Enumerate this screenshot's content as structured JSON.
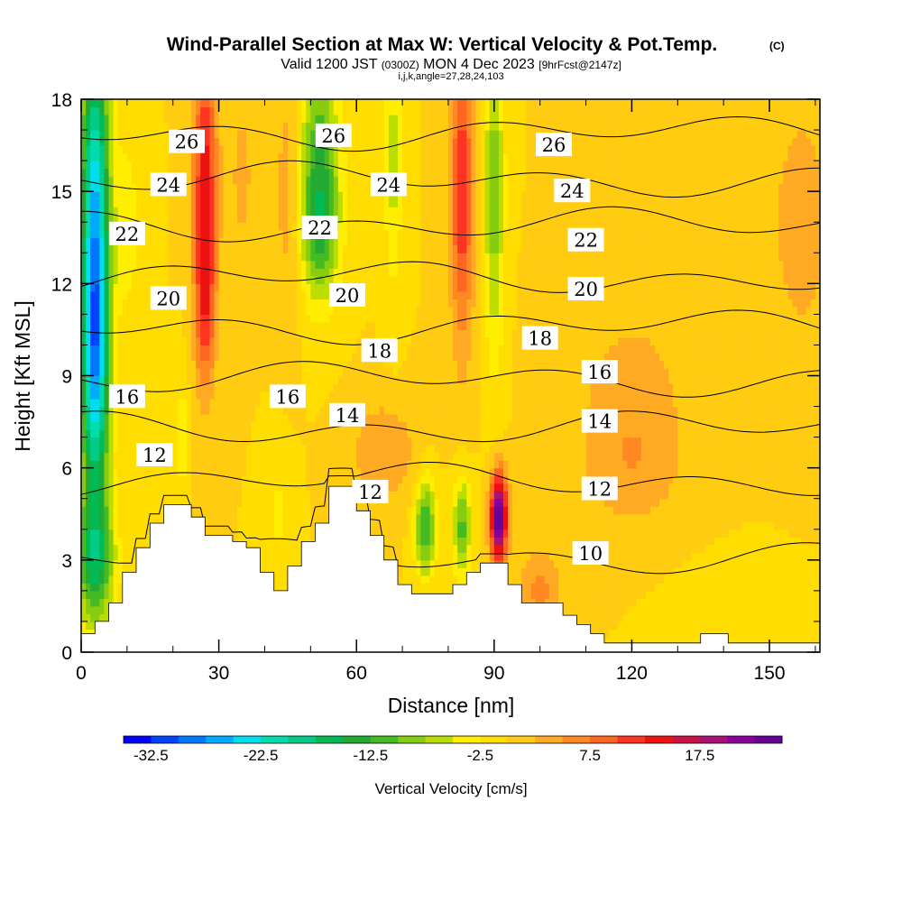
{
  "header": {
    "title": "Wind-Parallel Section at Max W: Vertical Velocity & Pot.Temp.",
    "copyright": "(C)",
    "valid_prefix": "Valid 1200 JST",
    "valid_utc": "(0300Z)",
    "valid_date": "MON 4 Dec 2023",
    "forecast": "[9hrFcst@2147z]",
    "indices": "i,j,k,angle=27,28,24,103"
  },
  "chart_data": {
    "type": "heatmap",
    "xlabel": "Distance [nm]",
    "ylabel": "Height [Kft MSL]",
    "xlim": [
      0,
      161
    ],
    "ylim": [
      0,
      18
    ],
    "x_ticks": [
      0,
      30,
      60,
      90,
      120,
      150
    ],
    "y_ticks": [
      0,
      3,
      6,
      9,
      12,
      15,
      18
    ],
    "colorbar": {
      "title": "Vertical Velocity [cm/s]",
      "tick_labels": [
        "-32.5",
        "-22.5",
        "-12.5",
        "-2.5",
        "7.5",
        "17.5"
      ],
      "min": -35,
      "max": 25,
      "colors": [
        "#0000ff",
        "#0044ff",
        "#0077ff",
        "#00aaff",
        "#00ddee",
        "#00ddaa",
        "#00cc88",
        "#00bb55",
        "#22aa33",
        "#44bb22",
        "#88cc11",
        "#bbdd00",
        "#ffee00",
        "#ffdd00",
        "#ffcc11",
        "#ffaa22",
        "#ff8822",
        "#ff6622",
        "#ff3322",
        "#ee1111",
        "#cc1144",
        "#aa1177",
        "#880099",
        "#660099"
      ]
    },
    "terrain": [
      [
        0,
        0.6
      ],
      [
        3,
        0.6
      ],
      [
        3,
        1.0
      ],
      [
        6,
        1.0
      ],
      [
        6,
        1.6
      ],
      [
        9,
        1.6
      ],
      [
        9,
        2.6
      ],
      [
        12,
        2.6
      ],
      [
        12,
        3.4
      ],
      [
        15,
        3.4
      ],
      [
        15,
        4.2
      ],
      [
        18,
        4.2
      ],
      [
        18,
        4.8
      ],
      [
        24,
        4.8
      ],
      [
        24,
        4.4
      ],
      [
        27,
        4.4
      ],
      [
        27,
        3.8
      ],
      [
        33,
        3.8
      ],
      [
        33,
        3.6
      ],
      [
        36,
        3.6
      ],
      [
        36,
        3.4
      ],
      [
        39,
        3.4
      ],
      [
        39,
        2.6
      ],
      [
        42,
        2.6
      ],
      [
        42,
        2.0
      ],
      [
        45,
        2.0
      ],
      [
        45,
        2.8
      ],
      [
        48,
        2.8
      ],
      [
        48,
        3.6
      ],
      [
        51,
        3.6
      ],
      [
        51,
        4.2
      ],
      [
        54,
        4.2
      ],
      [
        54,
        5.4
      ],
      [
        60,
        5.4
      ],
      [
        60,
        4.6
      ],
      [
        63,
        4.6
      ],
      [
        63,
        3.8
      ],
      [
        66,
        3.8
      ],
      [
        66,
        3.0
      ],
      [
        69,
        3.0
      ],
      [
        69,
        2.2
      ],
      [
        72,
        2.2
      ],
      [
        72,
        1.9
      ],
      [
        81,
        1.9
      ],
      [
        81,
        2.2
      ],
      [
        84,
        2.2
      ],
      [
        84,
        2.6
      ],
      [
        87,
        2.6
      ],
      [
        87,
        2.9
      ],
      [
        93,
        2.9
      ],
      [
        93,
        2.2
      ],
      [
        96,
        2.2
      ],
      [
        96,
        1.6
      ],
      [
        105,
        1.6
      ],
      [
        105,
        1.2
      ],
      [
        108,
        1.2
      ],
      [
        108,
        0.9
      ],
      [
        111,
        0.9
      ],
      [
        111,
        0.6
      ],
      [
        114,
        0.6
      ],
      [
        114,
        0.3
      ],
      [
        135,
        0.3
      ],
      [
        135,
        0.6
      ],
      [
        141,
        0.6
      ],
      [
        141,
        0.3
      ],
      [
        161,
        0.3
      ]
    ],
    "theta_contours": [
      {
        "label": "10",
        "base": 3.1,
        "lx": 111,
        "ly": 3.2
      },
      {
        "label": "12",
        "base": 5.6,
        "lx": 113,
        "ly": 5.3
      },
      {
        "label": "14",
        "base": 7.3,
        "lx": 113,
        "ly": 7.5
      },
      {
        "label": "16",
        "base": 8.9,
        "lx": 113,
        "ly": 9.1
      },
      {
        "label": "18",
        "base": 10.6,
        "lx": 100,
        "ly": 10.2
      },
      {
        "label": "20",
        "base": 12.2,
        "lx": 110,
        "ly": 11.8
      },
      {
        "label": "22",
        "base": 13.9,
        "lx": 110,
        "ly": 13.4
      },
      {
        "label": "24",
        "base": 15.4,
        "lx": 107,
        "ly": 15.0
      },
      {
        "label": "26",
        "base": 16.9,
        "lx": 103,
        "ly": 16.5
      }
    ],
    "contour_labels": [
      {
        "text": "26",
        "x": 23,
        "y": 16.6
      },
      {
        "text": "26",
        "x": 55,
        "y": 16.8
      },
      {
        "text": "26",
        "x": 103,
        "y": 16.5
      },
      {
        "text": "24",
        "x": 19,
        "y": 15.2
      },
      {
        "text": "24",
        "x": 67,
        "y": 15.2
      },
      {
        "text": "24",
        "x": 107,
        "y": 15.0
      },
      {
        "text": "22",
        "x": 10,
        "y": 13.6
      },
      {
        "text": "22",
        "x": 52,
        "y": 13.8
      },
      {
        "text": "22",
        "x": 110,
        "y": 13.4
      },
      {
        "text": "20",
        "x": 19,
        "y": 11.5
      },
      {
        "text": "20",
        "x": 58,
        "y": 11.6
      },
      {
        "text": "20",
        "x": 110,
        "y": 11.8
      },
      {
        "text": "18",
        "x": 65,
        "y": 9.8
      },
      {
        "text": "18",
        "x": 100,
        "y": 10.2
      },
      {
        "text": "16",
        "x": 10,
        "y": 8.3
      },
      {
        "text": "16",
        "x": 45,
        "y": 8.3
      },
      {
        "text": "16",
        "x": 113,
        "y": 9.1
      },
      {
        "text": "14",
        "x": 58,
        "y": 7.7
      },
      {
        "text": "14",
        "x": 113,
        "y": 7.5
      },
      {
        "text": "12",
        "x": 16,
        "y": 6.4
      },
      {
        "text": "12",
        "x": 63,
        "y": 5.2
      },
      {
        "text": "12",
        "x": 113,
        "y": 5.3
      },
      {
        "text": "10",
        "x": 111,
        "y": 3.2
      }
    ],
    "w_features": [
      {
        "x": 3,
        "y": 14,
        "sx": 2.2,
        "sy": 5,
        "w": -24
      },
      {
        "x": 3,
        "y": 9,
        "sx": 2.2,
        "sy": 3,
        "w": -14
      },
      {
        "x": 3,
        "y": 3,
        "sx": 3,
        "sy": 1.5,
        "w": -14
      },
      {
        "x": 10,
        "y": 14,
        "sx": 2,
        "sy": 2.2,
        "w": -4
      },
      {
        "x": 27,
        "y": 15,
        "sx": 1.8,
        "sy": 3.5,
        "w": 14
      },
      {
        "x": 27,
        "y": 11,
        "sx": 1.5,
        "sy": 1.8,
        "w": 6
      },
      {
        "x": 35,
        "y": 15.5,
        "sx": 2.5,
        "sy": 2.5,
        "w": 3
      },
      {
        "x": 52,
        "y": 16,
        "sx": 3,
        "sy": 2.5,
        "w": -12
      },
      {
        "x": 52,
        "y": 13.5,
        "sx": 3,
        "sy": 1.5,
        "w": -7
      },
      {
        "x": 45,
        "y": 15,
        "sx": 2,
        "sy": 3,
        "w": 4
      },
      {
        "x": 68,
        "y": 16,
        "sx": 1.4,
        "sy": 3,
        "w": -6
      },
      {
        "x": 83,
        "y": 15,
        "sx": 1.8,
        "sy": 3.5,
        "w": 12
      },
      {
        "x": 90,
        "y": 15,
        "sx": 1.6,
        "sy": 3.8,
        "w": -9
      },
      {
        "x": 75,
        "y": 4.1,
        "sx": 1.6,
        "sy": 1.1,
        "w": -13
      },
      {
        "x": 83,
        "y": 4.1,
        "sx": 1.4,
        "sy": 1.1,
        "w": -11
      },
      {
        "x": 91,
        "y": 4.4,
        "sx": 1.3,
        "sy": 1.0,
        "w": 26
      },
      {
        "x": 66,
        "y": 6.5,
        "sx": 5,
        "sy": 1.2,
        "w": 5
      },
      {
        "x": 120,
        "y": 6,
        "sx": 8,
        "sy": 1.5,
        "w": 4
      },
      {
        "x": 120,
        "y": 9,
        "sx": 10,
        "sy": 2,
        "w": 3
      },
      {
        "x": 157,
        "y": 14,
        "sx": 5,
        "sy": 3,
        "w": 4
      },
      {
        "x": 130,
        "y": 16,
        "sx": 8,
        "sy": 2,
        "w": 2
      },
      {
        "x": 22,
        "y": 7,
        "sx": 1,
        "sy": 1.5,
        "w": -4
      },
      {
        "x": 43,
        "y": 4.5,
        "sx": 2,
        "sy": 1.5,
        "w": -3
      },
      {
        "x": 100,
        "y": 2,
        "sx": 3,
        "sy": 1,
        "w": 6
      },
      {
        "x": 140,
        "y": 1.5,
        "sx": 8,
        "sy": 1,
        "w": -1
      }
    ]
  }
}
